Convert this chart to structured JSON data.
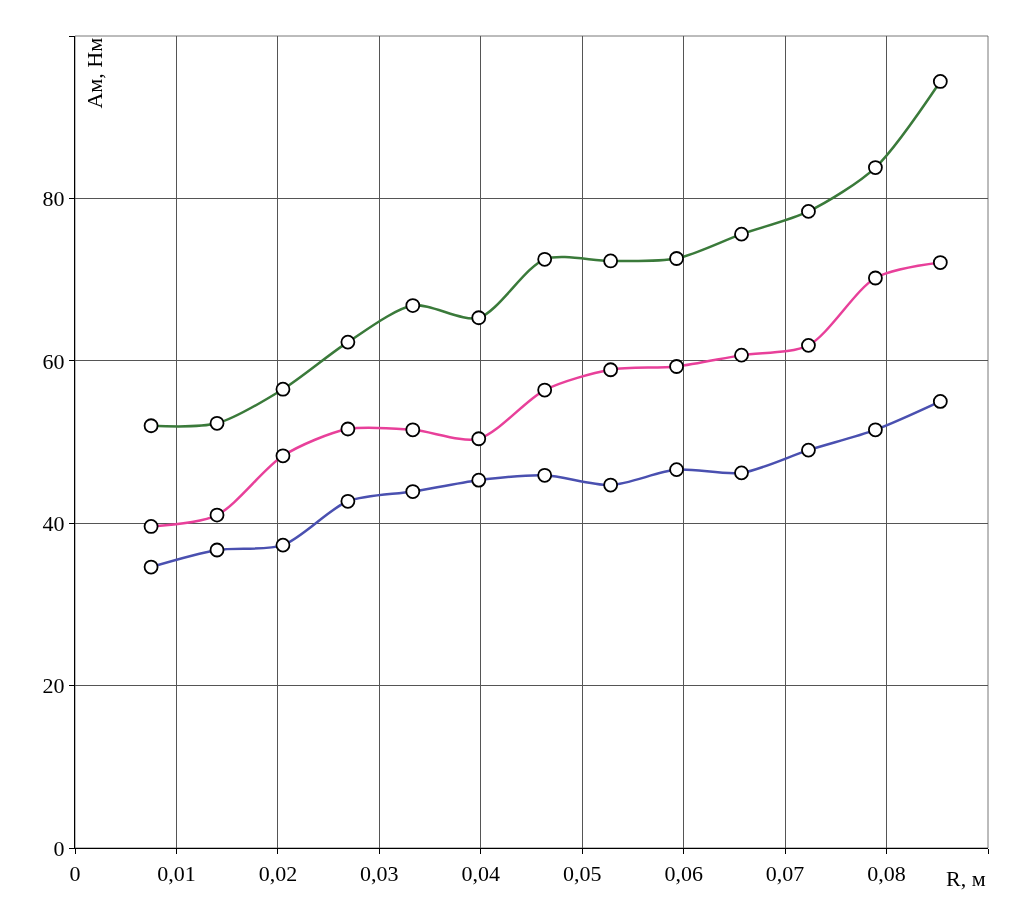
{
  "chart_data": {
    "type": "line",
    "xlabel": "R, м",
    "ylabel": "Ам, Нм",
    "x": [
      0.0075,
      0.014,
      0.0205,
      0.0269,
      0.0333,
      0.0398,
      0.0463,
      0.0528,
      0.0593,
      0.0657,
      0.0723,
      0.0789,
      0.0853
    ],
    "series": [
      {
        "color": "#3a7a3a",
        "values": [
          52,
          52.3,
          56.5,
          62.3,
          66.8,
          65.3,
          72.5,
          72.3,
          72.6,
          75.6,
          78.4,
          83.8,
          94.4
        ]
      },
      {
        "color": "#e8409a",
        "values": [
          39.6,
          41,
          48.3,
          51.6,
          51.5,
          50.4,
          56.4,
          58.9,
          59.3,
          60.7,
          61.9,
          70.2,
          72.1
        ]
      },
      {
        "color": "#4a50b0",
        "values": [
          34.6,
          36.7,
          37.3,
          42.7,
          43.9,
          45.3,
          45.9,
          44.7,
          46.6,
          46.2,
          49,
          51.5,
          55
        ]
      }
    ],
    "xlim": [
      0,
      0.09
    ],
    "xticks": [
      {
        "value": 0,
        "label": "0"
      },
      {
        "value": 0.01,
        "label": "0,01"
      },
      {
        "value": 0.02,
        "label": "0,02"
      },
      {
        "value": 0.03,
        "label": "0,03"
      },
      {
        "value": 0.04,
        "label": "0,04"
      },
      {
        "value": 0.05,
        "label": "0,05"
      },
      {
        "value": 0.06,
        "label": "0,06"
      },
      {
        "value": 0.07,
        "label": "0,07"
      },
      {
        "value": 0.08,
        "label": "0,08"
      },
      {
        "value": 0.09,
        "label": null
      }
    ],
    "ylim": [
      0,
      100
    ],
    "yticks": [
      0,
      20,
      40,
      60,
      80,
      {
        "value": 100,
        "label": null
      }
    ],
    "grid": true,
    "marker": "circle",
    "line_style": "solid"
  }
}
